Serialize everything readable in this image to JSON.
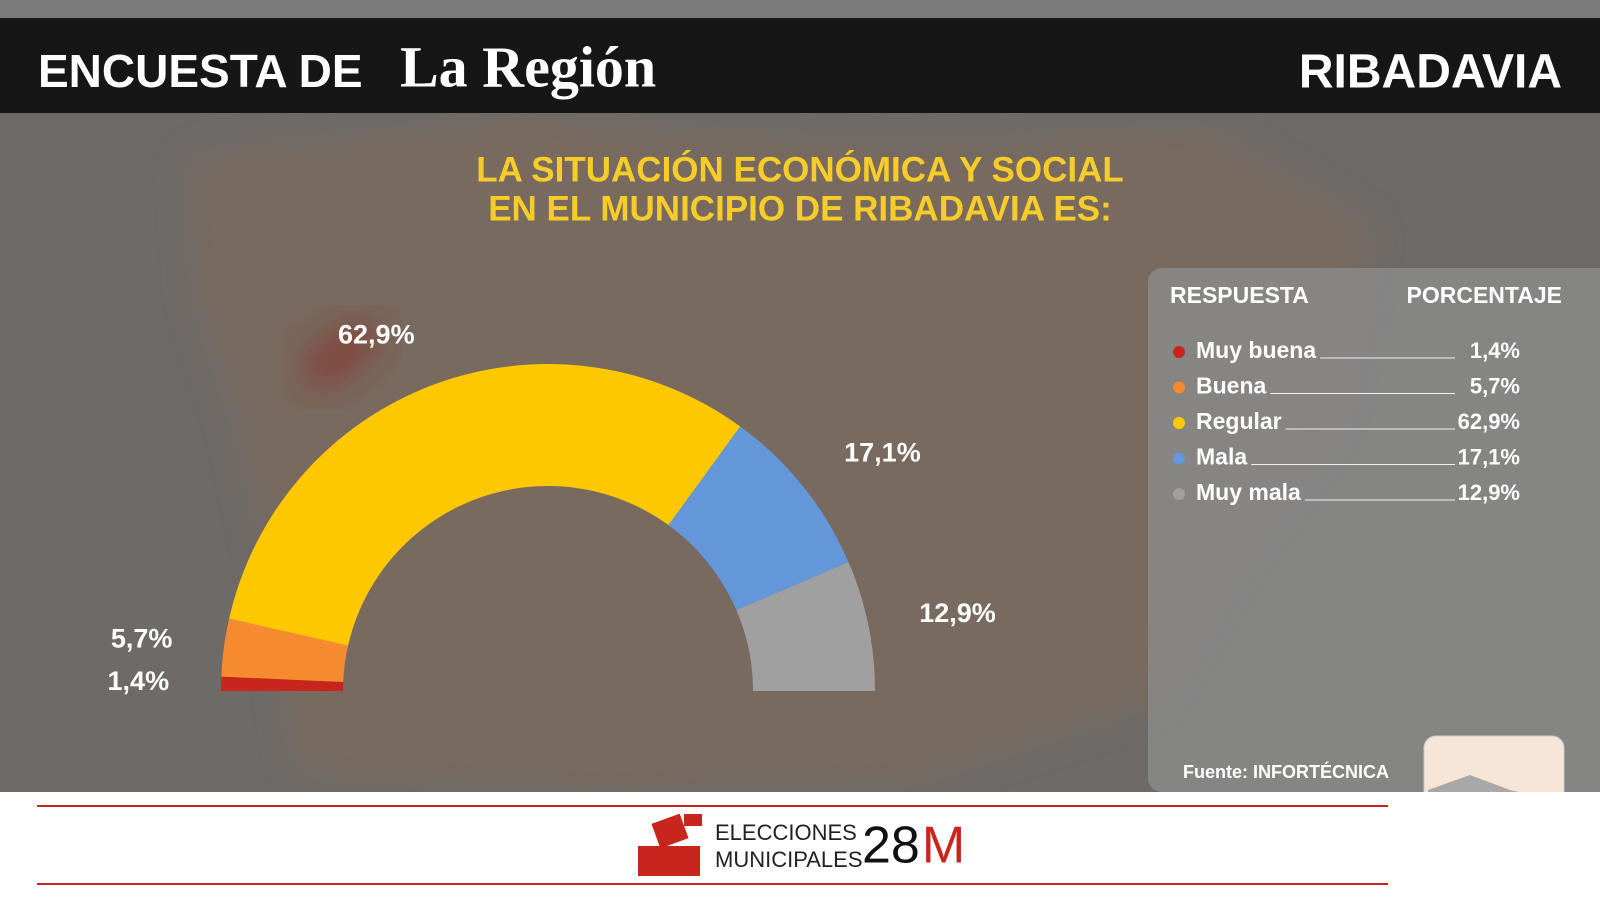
{
  "header": {
    "prefix": "ENCUESTA DE",
    "brand": "La Región",
    "place": "RIBADAVIA"
  },
  "chart_data": {
    "type": "pie",
    "semicircle": true,
    "title": [
      "LA SITUACIÓN ECONÓMICA Y SOCIAL",
      "EN EL MUNICIPIO DE RIBADAVIA ES:"
    ],
    "categories": [
      "Muy buena",
      "Buena",
      "Regular",
      "Mala",
      "Muy mala"
    ],
    "values": [
      1.4,
      5.7,
      62.9,
      17.1,
      12.9
    ],
    "value_labels": [
      "1,4%",
      "5,7%",
      "62,9%",
      "17,1%",
      "12,9%"
    ],
    "colors": [
      "#c8261d",
      "#f58a2e",
      "#fdc800",
      "#6497d9",
      "#a0a0a0"
    ]
  },
  "table": {
    "headers": [
      "RESPUESTA",
      "PORCENTAJE"
    ]
  },
  "source": "Fuente: INFORTÉCNICA",
  "footer": {
    "line1": "ELECCIONES",
    "line2": "MUNICIPALES",
    "number": "28",
    "suffix": "M"
  }
}
